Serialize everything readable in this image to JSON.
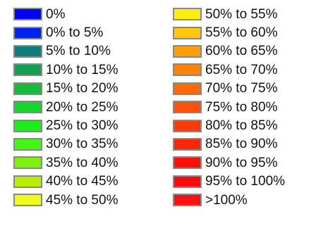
{
  "legend": {
    "left": [
      {
        "label": "0%",
        "color": "#0000ff"
      },
      {
        "label": "0% to 5%",
        "color": "#0022ee"
      },
      {
        "label": "5% to 10%",
        "color": "#0f7d7d"
      },
      {
        "label": "10% to 15%",
        "color": "#10a050"
      },
      {
        "label": "15% to 20%",
        "color": "#14bc3c"
      },
      {
        "label": "20% to 25%",
        "color": "#16d42e"
      },
      {
        "label": "25% to 30%",
        "color": "#1aee1a"
      },
      {
        "label": "30% to 35%",
        "color": "#40f812"
      },
      {
        "label": "35% to 40%",
        "color": "#80f00a"
      },
      {
        "label": "40% to 45%",
        "color": "#b8ee06"
      },
      {
        "label": "45% to 50%",
        "color": "#eefc1a"
      }
    ],
    "right": [
      {
        "label": "50% to 55%",
        "color": "#ffee0c"
      },
      {
        "label": "55% to 60%",
        "color": "#ffc808"
      },
      {
        "label": "60% to 65%",
        "color": "#ff9e06"
      },
      {
        "label": "65% to 70%",
        "color": "#ff8406"
      },
      {
        "label": "70% to 75%",
        "color": "#ff6a06"
      },
      {
        "label": "75% to 80%",
        "color": "#ff5206"
      },
      {
        "label": "80% to 85%",
        "color": "#ff3a04"
      },
      {
        "label": "85% to 90%",
        "color": "#ff2606"
      },
      {
        "label": "90% to 95%",
        "color": "#ff0e0a"
      },
      {
        "label": "95% to 100%",
        "color": "#ff0808"
      },
      {
        "label": ">100%",
        "color": "#ff1010"
      }
    ]
  }
}
